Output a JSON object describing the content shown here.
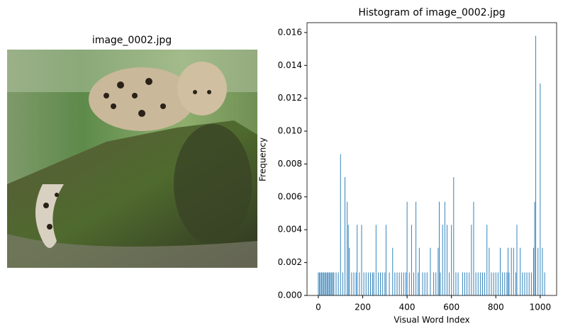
{
  "chart_data": {
    "image_title": "image_0002.jpg",
    "type": "bar",
    "title": "Histogram of image_0002.jpg",
    "xlabel": "Visual Word Index",
    "ylabel": "Frequency",
    "color": "#1f77b4",
    "xlim": [
      -51,
      1074
    ],
    "ylim": [
      0,
      0.0166
    ],
    "xticks": [
      0,
      200,
      400,
      600,
      800,
      1000
    ],
    "yticks": [
      {
        "value": 0,
        "label": "0.000"
      },
      {
        "value": 0.002,
        "label": "0.002"
      },
      {
        "value": 0.004,
        "label": "0.004"
      },
      {
        "value": 0.006,
        "label": "0.006"
      },
      {
        "value": 0.008,
        "label": "0.008"
      },
      {
        "value": 0.01,
        "label": "0.010"
      },
      {
        "value": 0.012,
        "label": "0.012"
      },
      {
        "value": 0.014,
        "label": "0.014"
      },
      {
        "value": 0.016,
        "label": "0.016"
      }
    ],
    "x": [
      0,
      5,
      10,
      15,
      20,
      25,
      30,
      35,
      40,
      45,
      50,
      55,
      60,
      65,
      70,
      80,
      90,
      100,
      110,
      120,
      130,
      135,
      140,
      150,
      160,
      170,
      175,
      185,
      195,
      205,
      215,
      225,
      235,
      245,
      250,
      260,
      270,
      280,
      290,
      300,
      305,
      320,
      335,
      345,
      355,
      365,
      375,
      385,
      395,
      400,
      410,
      420,
      430,
      440,
      450,
      455,
      470,
      480,
      490,
      505,
      520,
      530,
      540,
      545,
      550,
      560,
      570,
      580,
      590,
      600,
      610,
      620,
      630,
      650,
      660,
      670,
      680,
      690,
      700,
      710,
      720,
      730,
      740,
      750,
      760,
      770,
      780,
      790,
      800,
      810,
      820,
      830,
      840,
      850,
      855,
      860,
      870,
      880,
      890,
      895,
      910,
      920,
      930,
      940,
      950,
      960,
      970,
      975,
      980,
      990,
      1000,
      1010,
      1020
    ],
    "values": [
      0.0014,
      0.0014,
      0.0014,
      0.0014,
      0.0014,
      0.0014,
      0.0014,
      0.0014,
      0.0014,
      0.0014,
      0.0014,
      0.0014,
      0.0014,
      0.0014,
      0.0014,
      0.0014,
      0.0014,
      0.0086,
      0.0014,
      0.0072,
      0.0057,
      0.0043,
      0.0029,
      0.0014,
      0.0014,
      0.0014,
      0.0043,
      0.0014,
      0.0043,
      0.0014,
      0.0014,
      0.0014,
      0.0014,
      0.0014,
      0.0014,
      0.0043,
      0.0014,
      0.0014,
      0.0014,
      0.0014,
      0.0043,
      0.0014,
      0.0029,
      0.0014,
      0.0014,
      0.0014,
      0.0014,
      0.0014,
      0.0014,
      0.0057,
      0.0014,
      0.0043,
      0.0014,
      0.0057,
      0.0014,
      0.0029,
      0.0014,
      0.0014,
      0.0014,
      0.0029,
      0.0014,
      0.0014,
      0.0029,
      0.0057,
      0.0014,
      0.0043,
      0.0057,
      0.0043,
      0.0014,
      0.0043,
      0.0072,
      0.0014,
      0.0014,
      0.0014,
      0.0014,
      0.0014,
      0.0014,
      0.0043,
      0.0057,
      0.0014,
      0.0014,
      0.0014,
      0.0014,
      0.0014,
      0.0043,
      0.0029,
      0.0014,
      0.0014,
      0.0014,
      0.0014,
      0.0029,
      0.0014,
      0.0014,
      0.0014,
      0.0029,
      0.0014,
      0.0029,
      0.0029,
      0.0014,
      0.0043,
      0.0029,
      0.0014,
      0.0014,
      0.0014,
      0.0014,
      0.0014,
      0.0029,
      0.0057,
      0.0158,
      0.0029,
      0.0129,
      0.0029,
      0.0014
    ]
  }
}
